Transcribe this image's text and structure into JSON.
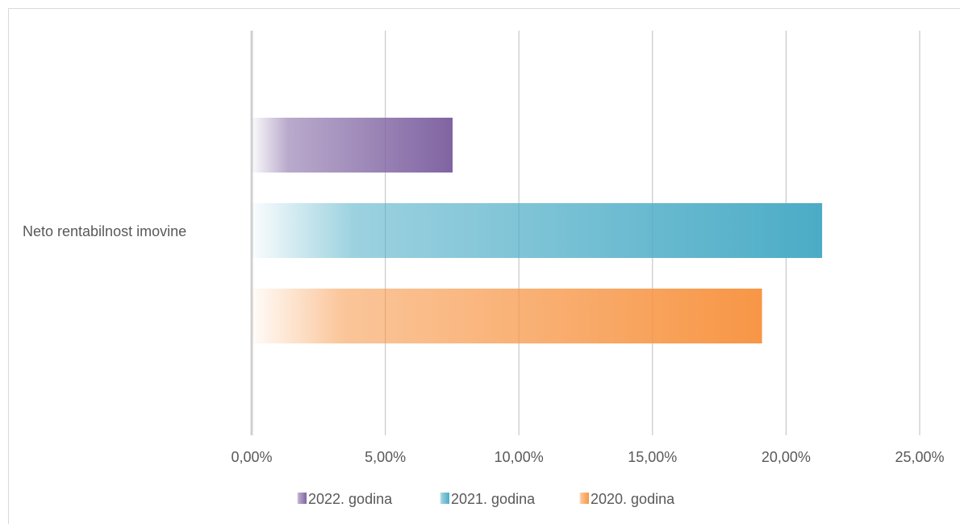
{
  "chart_data": {
    "type": "bar",
    "orientation": "horizontal",
    "categories": [
      "Neto rentabilnost imovine"
    ],
    "series": [
      {
        "name": "2022. godina",
        "values": [
          7.52
        ],
        "color": "#8064a2"
      },
      {
        "name": "2021. godina",
        "values": [
          21.35
        ],
        "color": "#4bacc6"
      },
      {
        "name": "2020. godina",
        "values": [
          19.1
        ],
        "color": "#f79646"
      }
    ],
    "xlim": [
      0,
      25
    ],
    "x_ticks": [
      0,
      5,
      10,
      15,
      20,
      25
    ],
    "x_tick_labels": [
      "0,00%",
      "5,00%",
      "10,00%",
      "15,00%",
      "20,00%",
      "25,00%"
    ],
    "grid": true,
    "legend_position": "bottom",
    "bar_fill": "gradient"
  }
}
